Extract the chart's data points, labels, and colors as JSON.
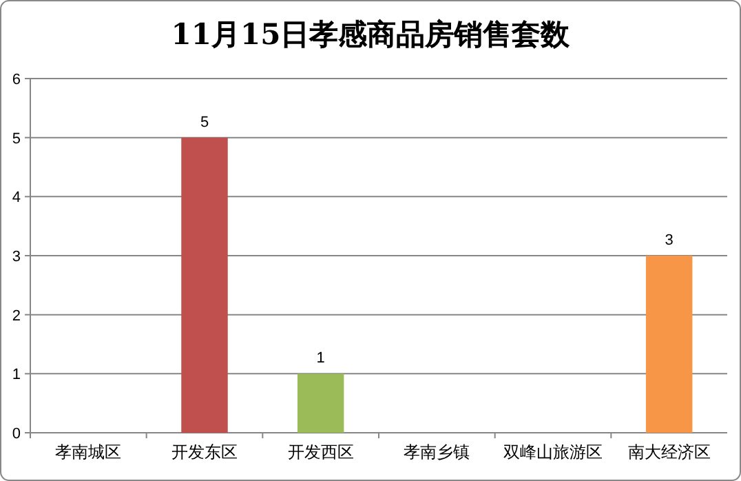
{
  "chart_data": {
    "type": "bar",
    "title": "11月15日孝感商品房销售套数",
    "categories": [
      "孝南城区",
      "开发东区",
      "开发西区",
      "孝南乡镇",
      "双峰山旅游区",
      "南大经济区"
    ],
    "values": [
      0,
      5,
      1,
      0,
      0,
      3
    ],
    "colors": [
      "#4f81bd",
      "#c0504d",
      "#9bbb59",
      "#8064a2",
      "#4bacc6",
      "#f79646"
    ],
    "value_labels": [
      null,
      "5",
      "1",
      null,
      null,
      "3"
    ],
    "ylim": [
      0,
      6
    ],
    "yticks": [
      0,
      1,
      2,
      3,
      4,
      5,
      6
    ],
    "grid": "y"
  }
}
